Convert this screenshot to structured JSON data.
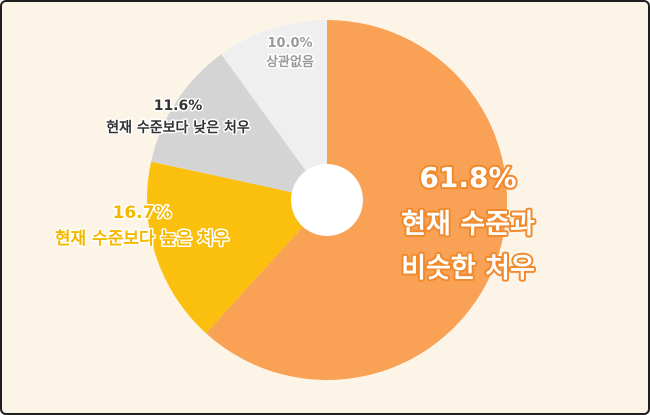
{
  "chart_data": {
    "type": "pie",
    "donut": true,
    "slices": [
      {
        "pct": "61.8%",
        "value": 61.8,
        "label_lines": [
          "현재 수준과",
          "비슷한 처우"
        ],
        "color": "#f9a154",
        "text_color": "#ffffff",
        "text_stroke": "#f08a2c",
        "dark": false
      },
      {
        "pct": "16.7%",
        "value": 16.7,
        "label_lines": [
          "현재 수준보다 높은 처우"
        ],
        "color": "#fbbf0d",
        "text_color": "#f5b800",
        "text_stroke": "#ffffff",
        "dark": false
      },
      {
        "pct": "11.6%",
        "value": 11.6,
        "label_lines": [
          "현재 수준보다 낮은 처우"
        ],
        "color": "#d4d4d4",
        "text_color": "#333333",
        "text_stroke": "#ffffff",
        "dark": true
      },
      {
        "pct": "10.0%",
        "value": 10.0,
        "label_lines": [
          "상관없음"
        ],
        "color": "#efefef",
        "text_color": "#9a9a9a",
        "text_stroke": "#ffffff",
        "dark": false
      }
    ]
  }
}
